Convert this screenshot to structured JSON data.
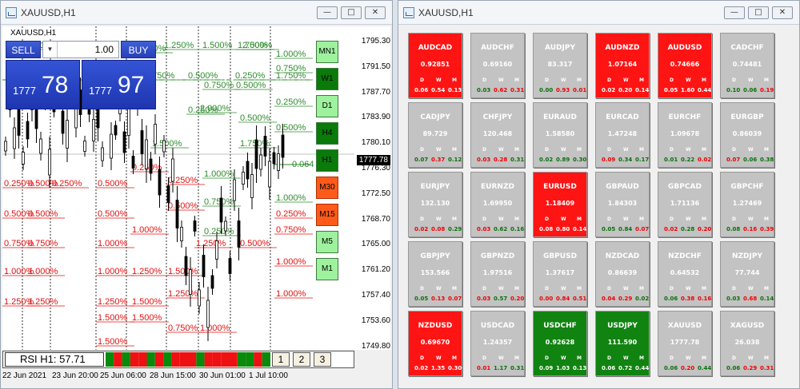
{
  "left_window": {
    "title": "XAUUSD,H1",
    "symbol_label": "XAUUSD,H1",
    "sell_label": "SELL",
    "buy_label": "BUY",
    "lot": "1.00",
    "bid_small": "1777",
    "bid_big": "78",
    "ask_small": "1777",
    "ask_big": "97",
    "price_axis": [
      "1795.30",
      "1791.50",
      "1787.70",
      "1783.90",
      "1780.10",
      "1776.30",
      "1772.50",
      "1768.70",
      "1765.00",
      "1761.20",
      "1757.40",
      "1753.60",
      "1749.80"
    ],
    "current_price": "1777.78",
    "level_label": "0.064",
    "timeframes": [
      "MN1",
      "W1",
      "D1",
      "H4",
      "H1",
      "M30",
      "M15",
      "M5",
      "M1"
    ],
    "rsi_label": "RSI H1: 57.71",
    "pages": [
      "1",
      "2",
      "3"
    ],
    "time_axis": [
      "22 Jun 2021",
      "23 Jun 20:00",
      "25 Jun 06:00",
      "28 Jun 15:00",
      "30 Jun 01:00",
      "1 Jul 10:00"
    ],
    "green_levels": [
      "1.000%",
      "0.750%",
      "0.500%",
      "0.250%",
      "1.750%",
      "1.500%",
      "1.250%",
      "2.000%"
    ],
    "red_levels": [
      "0.250%",
      "0.500%",
      "0.750%",
      "1.000%",
      "1.250%",
      "1.500%"
    ]
  },
  "right_window": {
    "title": "XAUUSD,H1",
    "dwm_labels": [
      "D",
      "W",
      "M"
    ],
    "tiles": [
      {
        "sym": "AUDCAD",
        "price": "0.92851",
        "vals": [
          "0.06",
          "0.54",
          "0.13"
        ],
        "bg": "red",
        "vc": [
          "r",
          "r",
          "r"
        ]
      },
      {
        "sym": "AUDCHF",
        "price": "0.69160",
        "vals": [
          "0.03",
          "0.62",
          "0.31"
        ],
        "bg": "gray",
        "vc": [
          "g",
          "r",
          "r"
        ]
      },
      {
        "sym": "AUDJPY",
        "price": "83.317",
        "vals": [
          "0.00",
          "0.93",
          "0.01"
        ],
        "bg": "gray",
        "vc": [
          "g",
          "r",
          "r"
        ]
      },
      {
        "sym": "AUDNZD",
        "price": "1.07164",
        "vals": [
          "0.02",
          "0.20",
          "0.14"
        ],
        "bg": "red",
        "vc": [
          "r",
          "r",
          "r"
        ]
      },
      {
        "sym": "AUDUSD",
        "price": "0.74666",
        "vals": [
          "0.05",
          "1.60",
          "0.44"
        ],
        "bg": "red",
        "vc": [
          "r",
          "r",
          "r"
        ]
      },
      {
        "sym": "CADCHF",
        "price": "0.74481",
        "vals": [
          "0.10",
          "0.06",
          "0.19"
        ],
        "bg": "gray",
        "vc": [
          "g",
          "g",
          "r"
        ]
      },
      {
        "sym": "CADJPY",
        "price": "89.729",
        "vals": [
          "0.07",
          "0.37",
          "0.12"
        ],
        "bg": "gray",
        "vc": [
          "g",
          "r",
          "g"
        ]
      },
      {
        "sym": "CHFJPY",
        "price": "120.468",
        "vals": [
          "0.03",
          "0.28",
          "0.31"
        ],
        "bg": "gray",
        "vc": [
          "r",
          "r",
          "g"
        ]
      },
      {
        "sym": "EURAUD",
        "price": "1.58580",
        "vals": [
          "0.02",
          "0.89",
          "0.30"
        ],
        "bg": "gray",
        "vc": [
          "g",
          "g",
          "g"
        ]
      },
      {
        "sym": "EURCAD",
        "price": "1.47248",
        "vals": [
          "0.09",
          "0.34",
          "0.17"
        ],
        "bg": "gray",
        "vc": [
          "r",
          "g",
          "g"
        ]
      },
      {
        "sym": "EURCHF",
        "price": "1.09678",
        "vals": [
          "0.01",
          "0.22",
          "0.02"
        ],
        "bg": "gray",
        "vc": [
          "g",
          "g",
          "r"
        ]
      },
      {
        "sym": "EURGBP",
        "price": "0.86039",
        "vals": [
          "0.07",
          "0.06",
          "0.38"
        ],
        "bg": "gray",
        "vc": [
          "r",
          "g",
          "g"
        ]
      },
      {
        "sym": "EURJPY",
        "price": "132.130",
        "vals": [
          "0.02",
          "0.08",
          "0.29"
        ],
        "bg": "gray",
        "vc": [
          "r",
          "r",
          "g"
        ]
      },
      {
        "sym": "EURNZD",
        "price": "1.69950",
        "vals": [
          "0.03",
          "0.62",
          "0.16"
        ],
        "bg": "gray",
        "vc": [
          "r",
          "g",
          "g"
        ]
      },
      {
        "sym": "EURUSD",
        "price": "1.18409",
        "vals": [
          "0.08",
          "0.80",
          "0.14"
        ],
        "bg": "red",
        "vc": [
          "r",
          "r",
          "r"
        ]
      },
      {
        "sym": "GBPAUD",
        "price": "1.84303",
        "vals": [
          "0.05",
          "0.84",
          "0.07"
        ],
        "bg": "gray",
        "vc": [
          "g",
          "g",
          "r"
        ]
      },
      {
        "sym": "GBPCAD",
        "price": "1.71136",
        "vals": [
          "0.02",
          "0.28",
          "0.20"
        ],
        "bg": "gray",
        "vc": [
          "r",
          "g",
          "r"
        ]
      },
      {
        "sym": "GBPCHF",
        "price": "1.27469",
        "vals": [
          "0.08",
          "0.16",
          "0.39"
        ],
        "bg": "gray",
        "vc": [
          "g",
          "r",
          "r"
        ]
      },
      {
        "sym": "GBPJPY",
        "price": "153.566",
        "vals": [
          "0.05",
          "0.13",
          "0.07"
        ],
        "bg": "gray",
        "vc": [
          "g",
          "r",
          "r"
        ]
      },
      {
        "sym": "GBPNZD",
        "price": "1.97516",
        "vals": [
          "0.03",
          "0.57",
          "0.20"
        ],
        "bg": "gray",
        "vc": [
          "r",
          "g",
          "r"
        ]
      },
      {
        "sym": "GBPUSD",
        "price": "1.37617",
        "vals": [
          "0.00",
          "0.84",
          "0.51"
        ],
        "bg": "gray",
        "vc": [
          "r",
          "r",
          "r"
        ]
      },
      {
        "sym": "NZDCAD",
        "price": "0.86639",
        "vals": [
          "0.04",
          "0.29",
          "0.02"
        ],
        "bg": "gray",
        "vc": [
          "r",
          "r",
          "g"
        ]
      },
      {
        "sym": "NZDCHF",
        "price": "0.64532",
        "vals": [
          "0.06",
          "0.38",
          "0.16"
        ],
        "bg": "gray",
        "vc": [
          "g",
          "r",
          "r"
        ]
      },
      {
        "sym": "NZDJPY",
        "price": "77.744",
        "vals": [
          "0.03",
          "0.68",
          "0.14"
        ],
        "bg": "gray",
        "vc": [
          "g",
          "r",
          "g"
        ]
      },
      {
        "sym": "NZDUSD",
        "price": "0.69670",
        "vals": [
          "0.02",
          "1.35",
          "0.30"
        ],
        "bg": "red",
        "vc": [
          "r",
          "r",
          "r"
        ]
      },
      {
        "sym": "USDCAD",
        "price": "1.24357",
        "vals": [
          "0.01",
          "1.17",
          "0.31"
        ],
        "bg": "gray",
        "vc": [
          "r",
          "g",
          "g"
        ]
      },
      {
        "sym": "USDCHF",
        "price": "0.92628",
        "vals": [
          "0.09",
          "1.03",
          "0.13"
        ],
        "bg": "green",
        "vc": [
          "g",
          "g",
          "g"
        ]
      },
      {
        "sym": "USDJPY",
        "price": "111.590",
        "vals": [
          "0.06",
          "0.72",
          "0.44"
        ],
        "bg": "green",
        "vc": [
          "g",
          "g",
          "g"
        ]
      },
      {
        "sym": "XAUUSD",
        "price": "1777.78",
        "vals": [
          "0.06",
          "0.20",
          "0.44"
        ],
        "bg": "gray",
        "vc": [
          "g",
          "r",
          "g"
        ]
      },
      {
        "sym": "XAGUSD",
        "price": "26.038",
        "vals": [
          "0.06",
          "0.29",
          "0.31"
        ],
        "bg": "gray",
        "vc": [
          "g",
          "r",
          "r"
        ]
      }
    ]
  },
  "colors": {
    "accent_blue": "#2a45c2",
    "tile_red": "#ff1414",
    "tile_green": "#118311",
    "tile_gray": "#c3c3c3"
  },
  "icons": [
    "app-chart-icon",
    "minimize-icon",
    "maximize-icon",
    "close-icon"
  ]
}
